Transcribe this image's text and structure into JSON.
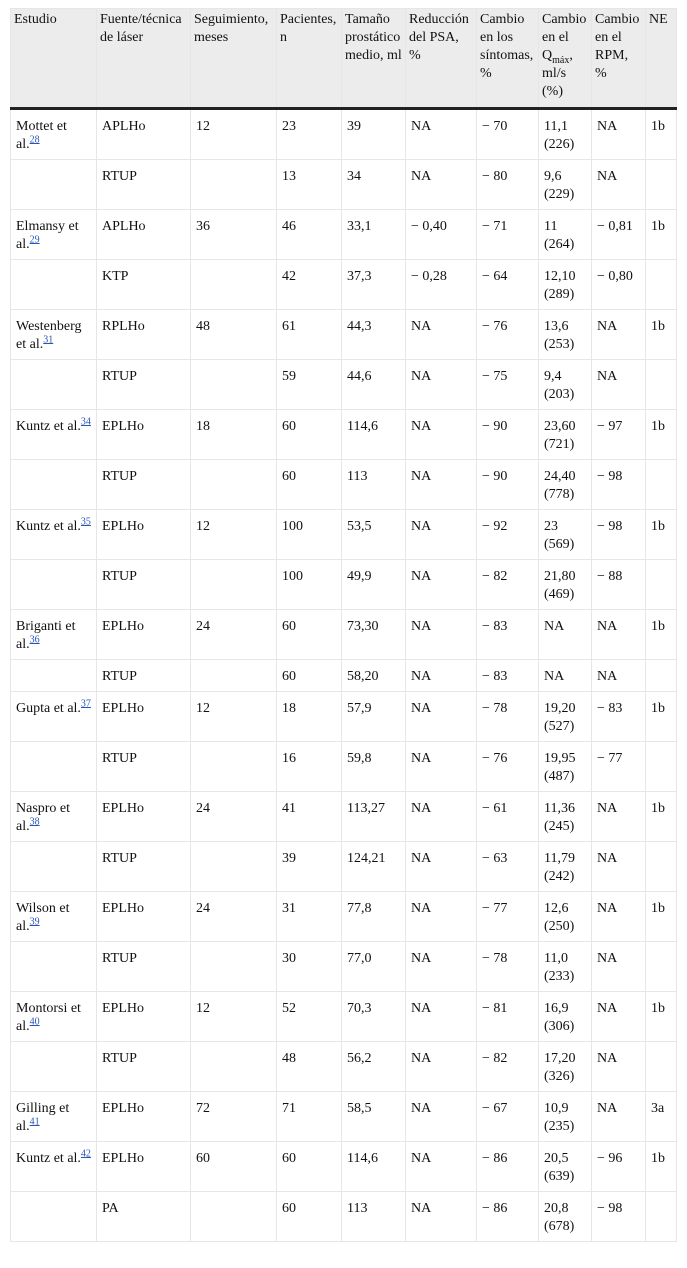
{
  "table": {
    "header": [
      "Estudio",
      "Fuente/técnica de láser",
      "Seguimiento, meses",
      "Pacientes, n",
      "Tamaño prostático medio, ml",
      "Reducción del PSA, %",
      "Cambio en los síntomas, %",
      {
        "text": "Cambio en el Q",
        "sub": "máx",
        "tail": ", ml/s (%)"
      },
      "Cambio en el RPM, %",
      "NE"
    ],
    "rows": [
      [
        {
          "name": "Mottet et al.",
          "ref": "28"
        },
        "APLHo",
        "12",
        "23",
        "39",
        "NA",
        "− 70",
        "11,1 (226)",
        "NA",
        "1b"
      ],
      [
        null,
        "RTUP",
        null,
        "13",
        "34",
        "NA",
        "− 80",
        "9,6 (229)",
        "NA",
        null
      ],
      [
        {
          "name": "Elmansy et al.",
          "ref": "29"
        },
        "APLHo",
        "36",
        "46",
        "33,1",
        "− 0,40",
        "− 71",
        "11 (264)",
        "− 0,81",
        "1b"
      ],
      [
        null,
        "KTP",
        null,
        "42",
        "37,3",
        "− 0,28",
        "− 64",
        "12,10 (289)",
        "− 0,80",
        null
      ],
      [
        {
          "name": "Westenberg et al.",
          "ref": "31"
        },
        "RPLHo",
        "48",
        "61",
        "44,3",
        "NA",
        "− 76",
        "13,6 (253)",
        "NA",
        "1b"
      ],
      [
        null,
        "RTUP",
        null,
        "59",
        "44,6",
        "NA",
        "− 75",
        "9,4 (203)",
        "NA",
        null
      ],
      [
        {
          "name": "Kuntz et al.",
          "ref": "34"
        },
        "EPLHo",
        "18",
        "60",
        "114,6",
        "NA",
        "− 90",
        "23,60 (721)",
        "− 97",
        "1b"
      ],
      [
        null,
        "RTUP",
        null,
        "60",
        "113",
        "NA",
        "− 90",
        "24,40 (778)",
        "− 98",
        null
      ],
      [
        {
          "name": "Kuntz et al.",
          "ref": "35"
        },
        "EPLHo",
        "12",
        "100",
        "53,5",
        "NA",
        "− 92",
        "23 (569)",
        "− 98",
        "1b"
      ],
      [
        null,
        "RTUP",
        null,
        "100",
        "49,9",
        "NA",
        "− 82",
        "21,80 (469)",
        "− 88",
        null
      ],
      [
        {
          "name": "Briganti et al.",
          "ref": "36"
        },
        "EPLHo",
        "24",
        "60",
        "73,30",
        "NA",
        "− 83",
        "NA",
        "NA",
        "1b"
      ],
      [
        null,
        "RTUP",
        null,
        "60",
        "58,20",
        "NA",
        "− 83",
        "NA",
        "NA",
        null
      ],
      [
        {
          "name": "Gupta et al.",
          "ref": "37"
        },
        "EPLHo",
        "12",
        "18",
        "57,9",
        "NA",
        "− 78",
        "19,20 (527)",
        "− 83",
        "1b"
      ],
      [
        null,
        "RTUP",
        null,
        "16",
        "59,8",
        "NA",
        "− 76",
        "19,95 (487)",
        "− 77",
        null
      ],
      [
        {
          "name": "Naspro et al.",
          "ref": "38"
        },
        "EPLHo",
        "24",
        "41",
        "113,27",
        "NA",
        "− 61",
        "11,36 (245)",
        "NA",
        "1b"
      ],
      [
        null,
        "RTUP",
        null,
        "39",
        "124,21",
        "NA",
        "− 63",
        "11,79 (242)",
        "NA",
        null
      ],
      [
        {
          "name": "Wilson et al.",
          "ref": "39"
        },
        "EPLHo",
        "24",
        "31",
        "77,8",
        "NA",
        "− 77",
        "12,6 (250)",
        "NA",
        "1b"
      ],
      [
        null,
        "RTUP",
        null,
        "30",
        "77,0",
        "NA",
        "− 78",
        "11,0 (233)",
        "NA",
        null
      ],
      [
        {
          "name": "Montorsi et al.",
          "ref": "40"
        },
        "EPLHo",
        "12",
        "52",
        "70,3",
        "NA",
        "− 81",
        "16,9 (306)",
        "NA",
        "1b"
      ],
      [
        null,
        "RTUP",
        null,
        "48",
        "56,2",
        "NA",
        "− 82",
        "17,20 (326)",
        "NA",
        null
      ],
      [
        {
          "name": "Gilling et al.",
          "ref": "41"
        },
        "EPLHo",
        "72",
        "71",
        "58,5",
        "NA",
        "− 67",
        "10,9 (235)",
        "NA",
        "3a"
      ],
      [
        {
          "name": "Kuntz et al.",
          "ref": "42"
        },
        "EPLHo",
        "60",
        "60",
        "114,6",
        "NA",
        "− 86",
        "20,5 (639)",
        "− 96",
        "1b"
      ],
      [
        null,
        "PA",
        null,
        "60",
        "113",
        "NA",
        "− 86",
        "20,8 (678)",
        "− 98",
        null
      ]
    ]
  }
}
